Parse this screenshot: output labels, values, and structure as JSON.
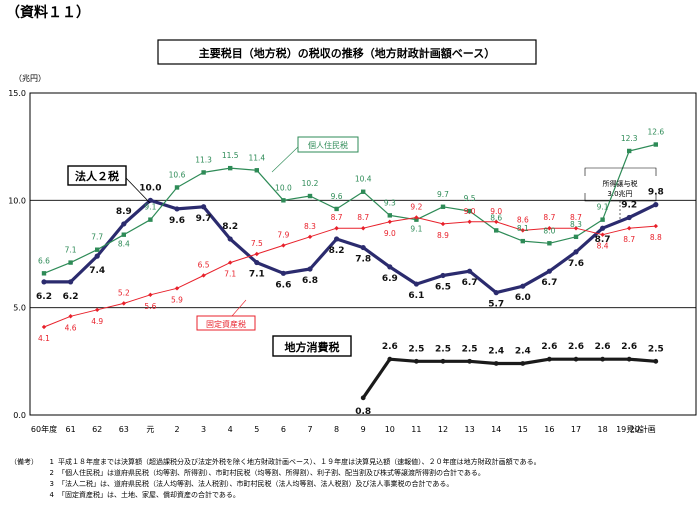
{
  "document_label": "（資料１１）",
  "chart_data": {
    "type": "line",
    "title": "主要税目（地方税）の税収の推移（地方財政計画額ベース）",
    "ylabel": "（兆円）",
    "ylim": [
      0,
      15
    ],
    "yticks": [
      "0.0",
      "5.0",
      "10.0",
      "15.0"
    ],
    "grid": "horizontal reference lines at 5.0 and 10.0",
    "categories": [
      "60年度",
      "61",
      "62",
      "63",
      "元",
      "2",
      "3",
      "4",
      "5",
      "6",
      "7",
      "8",
      "9",
      "10",
      "11",
      "12",
      "13",
      "14",
      "15",
      "16",
      "17",
      "18",
      "19見込",
      "20計画"
    ],
    "series": [
      {
        "name": "法人２税",
        "color": "#2b2b6e",
        "values": [
          6.2,
          6.2,
          7.4,
          8.9,
          10.0,
          9.6,
          9.7,
          8.2,
          7.1,
          6.6,
          6.8,
          8.2,
          7.8,
          6.9,
          6.1,
          6.5,
          6.7,
          5.7,
          6.0,
          6.7,
          7.6,
          8.7,
          9.2,
          9.8
        ]
      },
      {
        "name": "個人住民税",
        "color": "#2e8b57",
        "values": [
          6.6,
          7.1,
          7.7,
          8.4,
          9.1,
          10.6,
          11.3,
          11.5,
          11.4,
          10.0,
          10.2,
          9.6,
          10.4,
          9.3,
          9.1,
          9.7,
          9.5,
          8.6,
          8.1,
          8.0,
          8.3,
          9.1,
          12.3,
          12.6
        ]
      },
      {
        "name": "固定資産税",
        "color": "#e8212b",
        "values": [
          4.1,
          4.6,
          4.9,
          5.2,
          5.6,
          5.9,
          6.5,
          7.1,
          7.5,
          7.9,
          8.3,
          8.7,
          8.7,
          9.0,
          9.2,
          8.9,
          9.0,
          9.0,
          8.6,
          8.7,
          8.7,
          8.4,
          8.7,
          8.8
        ]
      },
      {
        "name": "地方消費税",
        "color": "#1a1a1a",
        "values": [
          null,
          null,
          null,
          null,
          null,
          null,
          null,
          null,
          null,
          null,
          null,
          null,
          0.8,
          2.6,
          2.5,
          2.5,
          2.5,
          2.4,
          2.4,
          2.6,
          2.6,
          2.6,
          2.6,
          2.5
        ]
      }
    ],
    "annotations": [
      {
        "text": "所得譲与税",
        "x": "18"
      },
      {
        "text": "3.0兆円",
        "x": "18"
      }
    ]
  },
  "notes": {
    "label": "（備考）",
    "items": [
      {
        "num": "1",
        "text": "平成１８年度までは決算額（超過課税分及び法定外税を除く地方財政計画ベース）、１９年度は決算見込額（速報値）、２０年度は地方財政計画額である。"
      },
      {
        "num": "2",
        "text": "「個人住民税」は道府県民税（均等割、所得割）、市町村民税（均等割、所得割）、利子割、配当割及び株式等譲渡所得割の合計である。"
      },
      {
        "num": "3",
        "text": "「法人二税」は、道府県民税（法人均等割、法人税割）、市町村民税（法人均等割、法人税割）及び法人事業税の合計である。"
      },
      {
        "num": "4",
        "text": "「固定資産税」は、土地、家屋、償却資産の合計である。"
      }
    ]
  }
}
